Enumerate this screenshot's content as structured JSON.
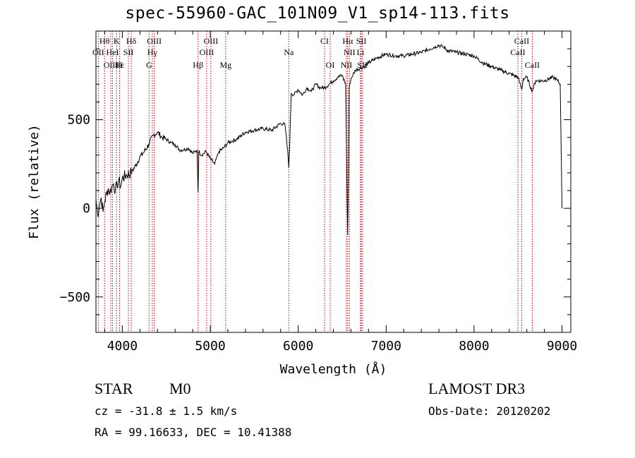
{
  "chart_data": {
    "type": "line",
    "title": "spec-55960-GAC_101N09_V1_sp14-113.fits",
    "xlabel": "Wavelength (Å)",
    "ylabel": "Flux (relative)",
    "xlim": [
      3700,
      9100
    ],
    "ylim": [
      -700,
      1000
    ],
    "xticks": [
      4000,
      5000,
      6000,
      7000,
      8000,
      9000
    ],
    "yticks": [
      -500,
      0,
      500
    ],
    "grid": false,
    "series": [
      {
        "name": "spectrum",
        "x": [
          3700,
          3720,
          3740,
          3760,
          3780,
          3800,
          3820,
          3840,
          3860,
          3880,
          3900,
          3920,
          3940,
          3960,
          3980,
          4000,
          4050,
          4100,
          4150,
          4200,
          4250,
          4300,
          4350,
          4400,
          4450,
          4500,
          4550,
          4600,
          4650,
          4700,
          4750,
          4800,
          4850,
          4861,
          4870,
          4900,
          4950,
          5000,
          5050,
          5100,
          5150,
          5200,
          5250,
          5300,
          5400,
          5500,
          5600,
          5700,
          5800,
          5850,
          5880,
          5893,
          5905,
          5920,
          5950,
          6000,
          6050,
          6100,
          6150,
          6200,
          6250,
          6300,
          6350,
          6400,
          6450,
          6500,
          6540,
          6555,
          6563,
          6572,
          6580,
          6600,
          6650,
          6700,
          6750,
          6800,
          6900,
          7000,
          7100,
          7200,
          7300,
          7400,
          7500,
          7600,
          7650,
          7700,
          7800,
          7900,
          8000,
          8100,
          8200,
          8300,
          8400,
          8500,
          8542,
          8560,
          8600,
          8662,
          8700,
          8800,
          8900,
          8950,
          8980,
          9000
        ],
        "y": [
          50,
          -40,
          20,
          60,
          -20,
          40,
          80,
          110,
          90,
          120,
          140,
          100,
          130,
          160,
          120,
          170,
          190,
          200,
          240,
          290,
          320,
          360,
          410,
          430,
          400,
          390,
          370,
          360,
          330,
          330,
          340,
          310,
          330,
          90,
          320,
          300,
          320,
          280,
          250,
          320,
          340,
          370,
          380,
          390,
          430,
          440,
          450,
          440,
          480,
          470,
          330,
          230,
          380,
          650,
          640,
          670,
          640,
          680,
          660,
          700,
          680,
          680,
          700,
          720,
          740,
          750,
          700,
          100,
          -150,
          200,
          680,
          730,
          780,
          790,
          800,
          820,
          850,
          870,
          860,
          860,
          870,
          880,
          900,
          920,
          910,
          890,
          880,
          870,
          860,
          820,
          800,
          780,
          760,
          740,
          670,
          730,
          740,
          660,
          720,
          720,
          740,
          720,
          700,
          0
        ]
      }
    ],
    "annotations": [
      {
        "label": "Hθ",
        "x": 3798,
        "row": 1
      },
      {
        "label": "K",
        "x": 3934,
        "row": 1
      },
      {
        "label": "Hδ",
        "x": 4102,
        "row": 1
      },
      {
        "label": "OIII",
        "x": 4363,
        "row": 1
      },
      {
        "label": "OIII",
        "x": 5007,
        "row": 1
      },
      {
        "label": "CI",
        "x": 6300,
        "row": 1
      },
      {
        "label": "Hα",
        "x": 6563,
        "row": 1
      },
      {
        "label": "SII",
        "x": 6717,
        "row": 1
      },
      {
        "label": "CaII",
        "x": 8542,
        "row": 1
      },
      {
        "label": "OII",
        "x": 3727,
        "row": 2
      },
      {
        "label": "HeI",
        "x": 3889,
        "row": 2
      },
      {
        "label": "SII",
        "x": 4069,
        "row": 2
      },
      {
        "label": "Hγ",
        "x": 4341,
        "row": 2
      },
      {
        "label": "OIII",
        "x": 4959,
        "row": 2
      },
      {
        "label": "Na",
        "x": 5893,
        "row": 2
      },
      {
        "label": "NII",
        "x": 6583,
        "row": 2
      },
      {
        "label": "Li",
        "x": 6708,
        "row": 2
      },
      {
        "label": "CaII",
        "x": 8498,
        "row": 2
      },
      {
        "label": "OIII",
        "x": 3869,
        "row": 3
      },
      {
        "label": "Hε",
        "x": 3970,
        "row": 3
      },
      {
        "label": "H",
        "x": 3968,
        "row": 3
      },
      {
        "label": "G",
        "x": 4304,
        "row": 3
      },
      {
        "label": "Hβ",
        "x": 4861,
        "row": 3
      },
      {
        "label": "Mg",
        "x": 5175,
        "row": 3
      },
      {
        "label": "OI",
        "x": 6364,
        "row": 3
      },
      {
        "label": "NII",
        "x": 6548,
        "row": 3
      },
      {
        "label": "SII",
        "x": 6731,
        "row": 3
      },
      {
        "label": "CaII",
        "x": 8662,
        "row": 3
      }
    ],
    "line_marker_color": "#c00000"
  },
  "footer": {
    "class": "STAR",
    "subclass": "M0",
    "survey": "LAMOST DR3",
    "redshift": "cz = -31.8 ± 1.5 km/s",
    "obsdate": "Obs-Date: 20120202",
    "coords": "RA =  99.16633, DEC =  10.41388"
  }
}
